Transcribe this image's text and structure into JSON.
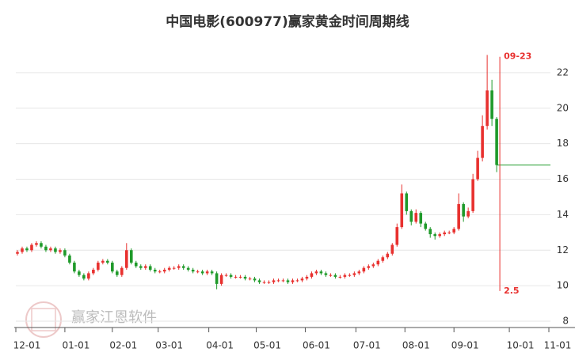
{
  "chart_data": {
    "type": "candlestick",
    "title": "中国电影(600977)赢家黄金时间周期线",
    "watermark": "赢家江恩软件",
    "up_color": "#e8312f",
    "down_color": "#1f9a2a",
    "grid": true,
    "xlim": [
      0,
      338
    ],
    "ylim": [
      8,
      23.6
    ],
    "yticks": [
      8,
      10,
      12,
      14,
      16,
      18,
      20,
      22
    ],
    "xticks": [
      {
        "value": 0,
        "label": "12-01"
      },
      {
        "value": 31,
        "label": "01-01"
      },
      {
        "value": 61,
        "label": "02-01"
      },
      {
        "value": 90,
        "label": "03-01"
      },
      {
        "value": 122,
        "label": "04-01"
      },
      {
        "value": 152,
        "label": "05-01"
      },
      {
        "value": 183,
        "label": "06-01"
      },
      {
        "value": 215,
        "label": "07-01"
      },
      {
        "value": 246,
        "label": "08-01"
      },
      {
        "value": 277,
        "label": "09-01"
      },
      {
        "value": 312,
        "label": "10-01"
      },
      {
        "value": 337,
        "label": "11-01"
      }
    ],
    "marker": {
      "x": 306,
      "label": "09-23",
      "note": "2.5",
      "span": [
        9.7,
        22.9
      ],
      "color": "#e8312f"
    },
    "x": [
      1,
      4,
      7,
      10,
      13,
      16,
      19,
      22,
      25,
      28,
      31,
      34,
      37,
      40,
      43,
      46,
      49,
      52,
      55,
      58,
      61,
      64,
      67,
      70,
      73,
      76,
      79,
      82,
      85,
      88,
      91,
      94,
      97,
      100,
      103,
      106,
      109,
      112,
      115,
      118,
      121,
      124,
      127,
      130,
      133,
      136,
      139,
      142,
      145,
      148,
      151,
      154,
      157,
      160,
      163,
      166,
      169,
      172,
      175,
      178,
      181,
      184,
      187,
      190,
      193,
      196,
      199,
      202,
      205,
      208,
      211,
      214,
      217,
      220,
      223,
      226,
      229,
      232,
      235,
      238,
      241,
      244,
      247,
      250,
      253,
      256,
      259,
      262,
      265,
      268,
      271,
      274,
      277,
      280,
      283,
      286,
      289,
      292,
      295,
      298,
      301,
      304
    ],
    "open": [
      11.8,
      11.9,
      12.1,
      12.0,
      12.3,
      12.4,
      12.2,
      12.0,
      12.1,
      11.9,
      12.0,
      11.7,
      11.3,
      10.8,
      10.6,
      10.4,
      10.7,
      10.9,
      11.3,
      11.4,
      11.3,
      10.8,
      10.6,
      11.0,
      12.0,
      11.3,
      11.1,
      11.0,
      11.1,
      10.9,
      10.8,
      10.8,
      10.9,
      11.0,
      11.0,
      11.1,
      11.0,
      10.9,
      10.8,
      10.8,
      10.7,
      10.8,
      10.7,
      10.1,
      10.6,
      10.6,
      10.5,
      10.5,
      10.5,
      10.4,
      10.4,
      10.3,
      10.2,
      10.2,
      10.2,
      10.3,
      10.3,
      10.3,
      10.2,
      10.3,
      10.3,
      10.4,
      10.5,
      10.7,
      10.8,
      10.7,
      10.6,
      10.6,
      10.5,
      10.5,
      10.6,
      10.6,
      10.7,
      10.8,
      11.0,
      11.1,
      11.2,
      11.4,
      11.6,
      11.8,
      12.3,
      13.3,
      15.2,
      14.2,
      13.6,
      14.1,
      13.5,
      13.2,
      12.9,
      12.8,
      12.9,
      13.0,
      13.0,
      13.2,
      14.6,
      13.9,
      14.2,
      16.0,
      17.2,
      19.0,
      21.0,
      19.4
    ],
    "high": [
      12.0,
      12.2,
      12.2,
      12.4,
      12.5,
      12.5,
      12.3,
      12.2,
      12.2,
      12.1,
      12.1,
      11.8,
      11.4,
      10.9,
      10.7,
      10.8,
      11.0,
      11.4,
      11.5,
      11.5,
      11.4,
      10.9,
      11.1,
      12.4,
      12.1,
      11.4,
      11.2,
      11.2,
      11.2,
      11.0,
      10.9,
      11.0,
      11.1,
      11.1,
      11.2,
      11.2,
      11.1,
      11.0,
      10.9,
      10.9,
      10.9,
      10.9,
      10.8,
      10.7,
      10.7,
      10.7,
      10.6,
      10.6,
      10.6,
      10.5,
      10.5,
      10.4,
      10.3,
      10.3,
      10.4,
      10.4,
      10.4,
      10.4,
      10.4,
      10.4,
      10.5,
      10.6,
      10.8,
      10.9,
      10.9,
      10.8,
      10.7,
      10.7,
      10.6,
      10.7,
      10.7,
      10.8,
      10.9,
      11.1,
      11.2,
      11.3,
      11.5,
      11.7,
      11.9,
      12.4,
      13.5,
      15.7,
      15.3,
      14.3,
      14.3,
      14.2,
      13.6,
      13.3,
      13.0,
      13.0,
      13.1,
      13.1,
      13.3,
      15.2,
      14.7,
      14.4,
      16.3,
      17.6,
      19.6,
      23.0,
      21.6,
      19.5
    ],
    "low": [
      11.7,
      11.8,
      11.9,
      11.9,
      12.2,
      12.1,
      11.9,
      11.9,
      11.8,
      11.8,
      11.6,
      11.2,
      10.7,
      10.5,
      10.3,
      10.3,
      10.6,
      10.8,
      11.2,
      11.2,
      10.7,
      10.5,
      10.5,
      10.9,
      11.2,
      11.0,
      10.9,
      10.9,
      10.8,
      10.7,
      10.7,
      10.7,
      10.8,
      10.9,
      10.9,
      10.9,
      10.8,
      10.7,
      10.7,
      10.6,
      10.6,
      10.6,
      9.8,
      10.0,
      10.5,
      10.4,
      10.4,
      10.4,
      10.3,
      10.3,
      10.2,
      10.1,
      10.1,
      10.1,
      10.1,
      10.2,
      10.2,
      10.1,
      10.1,
      10.2,
      10.2,
      10.3,
      10.4,
      10.6,
      10.6,
      10.5,
      10.5,
      10.4,
      10.4,
      10.4,
      10.5,
      10.5,
      10.6,
      10.7,
      10.9,
      11.0,
      11.1,
      11.3,
      11.5,
      11.7,
      12.2,
      13.2,
      14.0,
      13.4,
      13.5,
      13.3,
      13.1,
      12.7,
      12.6,
      12.7,
      12.8,
      12.9,
      12.9,
      13.1,
      13.6,
      13.8,
      14.1,
      15.9,
      17.0,
      18.8,
      19.0,
      16.4
    ],
    "close": [
      11.9,
      12.1,
      12.0,
      12.3,
      12.4,
      12.2,
      12.0,
      12.1,
      11.9,
      12.0,
      11.7,
      11.3,
      10.8,
      10.6,
      10.4,
      10.7,
      10.9,
      11.3,
      11.4,
      11.3,
      10.8,
      10.6,
      11.0,
      12.0,
      11.3,
      11.1,
      11.0,
      11.1,
      10.9,
      10.8,
      10.8,
      10.9,
      11.0,
      11.0,
      11.1,
      11.0,
      10.9,
      10.8,
      10.8,
      10.7,
      10.8,
      10.7,
      10.1,
      10.6,
      10.6,
      10.5,
      10.5,
      10.5,
      10.4,
      10.4,
      10.3,
      10.2,
      10.2,
      10.2,
      10.3,
      10.3,
      10.3,
      10.2,
      10.3,
      10.3,
      10.4,
      10.5,
      10.7,
      10.8,
      10.7,
      10.6,
      10.6,
      10.5,
      10.5,
      10.6,
      10.6,
      10.7,
      10.8,
      11.0,
      11.1,
      11.2,
      11.4,
      11.6,
      11.8,
      12.3,
      13.3,
      15.2,
      14.2,
      13.6,
      14.1,
      13.5,
      13.2,
      12.9,
      12.8,
      12.9,
      13.0,
      13.0,
      13.2,
      14.6,
      13.9,
      14.2,
      16.0,
      17.2,
      19.0,
      21.0,
      19.4,
      16.8
    ]
  }
}
